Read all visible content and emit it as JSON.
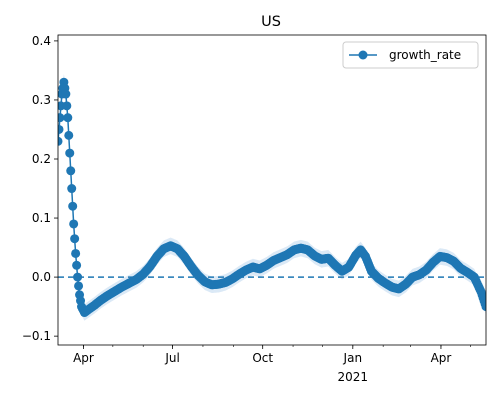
{
  "chart_data": {
    "type": "line",
    "title": "US",
    "xlabel": "",
    "ylabel": "",
    "x_start": "2020-03-06",
    "x_end": "2021-05-17",
    "xlim": [
      "2020-03-06",
      "2021-05-17"
    ],
    "ylim": [
      -0.115,
      0.41
    ],
    "x_ticks": [
      {
        "date": "2020-04-01",
        "label": "Apr"
      },
      {
        "date": "2020-07-01",
        "label": "Jul"
      },
      {
        "date": "2020-10-01",
        "label": "Oct"
      },
      {
        "date": "2021-01-01",
        "label": "Jan"
      },
      {
        "date": "2021-04-01",
        "label": "Apr"
      }
    ],
    "x_year_label": "2021",
    "y_ticks": [
      -0.1,
      0.0,
      0.1,
      0.2,
      0.3,
      0.4
    ],
    "y_tick_labels": [
      "−0.1",
      "0.0",
      "0.1",
      "0.2",
      "0.3",
      "0.4"
    ],
    "reference_line": {
      "y": 0.0,
      "style": "dashed"
    },
    "legend": {
      "position": "top-right",
      "entries": [
        "growth_rate"
      ]
    },
    "grid": false,
    "series": [
      {
        "name": "growth_rate",
        "color": "#1f77b4",
        "band_color": "#dbe9f6",
        "band_halfwidth": 0.014,
        "points": [
          [
            "2020-03-06",
            0.23
          ],
          [
            "2020-03-08",
            0.27
          ],
          [
            "2020-03-10",
            0.31
          ],
          [
            "2020-03-12",
            0.33
          ],
          [
            "2020-03-14",
            0.31
          ],
          [
            "2020-03-16",
            0.27
          ],
          [
            "2020-03-18",
            0.21
          ],
          [
            "2020-03-20",
            0.15
          ],
          [
            "2020-03-22",
            0.09
          ],
          [
            "2020-03-24",
            0.04
          ],
          [
            "2020-03-26",
            0.0
          ],
          [
            "2020-03-28",
            -0.03
          ],
          [
            "2020-03-30",
            -0.05
          ],
          [
            "2020-04-02",
            -0.06
          ],
          [
            "2020-04-06",
            -0.055
          ],
          [
            "2020-04-12",
            -0.048
          ],
          [
            "2020-04-18",
            -0.04
          ],
          [
            "2020-04-25",
            -0.032
          ],
          [
            "2020-05-02",
            -0.025
          ],
          [
            "2020-05-10",
            -0.017
          ],
          [
            "2020-05-18",
            -0.01
          ],
          [
            "2020-05-25",
            -0.004
          ],
          [
            "2020-06-01",
            0.005
          ],
          [
            "2020-06-08",
            0.018
          ],
          [
            "2020-06-15",
            0.035
          ],
          [
            "2020-06-22",
            0.048
          ],
          [
            "2020-06-29",
            0.053
          ],
          [
            "2020-07-06",
            0.048
          ],
          [
            "2020-07-13",
            0.035
          ],
          [
            "2020-07-20",
            0.018
          ],
          [
            "2020-07-27",
            0.003
          ],
          [
            "2020-08-03",
            -0.008
          ],
          [
            "2020-08-10",
            -0.013
          ],
          [
            "2020-08-17",
            -0.012
          ],
          [
            "2020-08-24",
            -0.009
          ],
          [
            "2020-08-31",
            -0.003
          ],
          [
            "2020-09-07",
            0.005
          ],
          [
            "2020-09-14",
            0.012
          ],
          [
            "2020-09-21",
            0.017
          ],
          [
            "2020-09-28",
            0.014
          ],
          [
            "2020-10-05",
            0.02
          ],
          [
            "2020-10-12",
            0.028
          ],
          [
            "2020-10-19",
            0.033
          ],
          [
            "2020-10-26",
            0.038
          ],
          [
            "2020-11-02",
            0.046
          ],
          [
            "2020-11-09",
            0.049
          ],
          [
            "2020-11-16",
            0.046
          ],
          [
            "2020-11-23",
            0.036
          ],
          [
            "2020-11-30",
            0.03
          ],
          [
            "2020-12-07",
            0.032
          ],
          [
            "2020-12-14",
            0.02
          ],
          [
            "2020-12-21",
            0.01
          ],
          [
            "2020-12-28",
            0.017
          ],
          [
            "2021-01-04",
            0.037
          ],
          [
            "2021-01-09",
            0.046
          ],
          [
            "2021-01-14",
            0.035
          ],
          [
            "2021-01-20",
            0.01
          ],
          [
            "2021-01-27",
            -0.002
          ],
          [
            "2021-02-03",
            -0.01
          ],
          [
            "2021-02-10",
            -0.017
          ],
          [
            "2021-02-17",
            -0.02
          ],
          [
            "2021-02-24",
            -0.012
          ],
          [
            "2021-03-03",
            0.0
          ],
          [
            "2021-03-10",
            0.004
          ],
          [
            "2021-03-17",
            0.012
          ],
          [
            "2021-03-24",
            0.025
          ],
          [
            "2021-03-31",
            0.035
          ],
          [
            "2021-04-07",
            0.033
          ],
          [
            "2021-04-14",
            0.027
          ],
          [
            "2021-04-21",
            0.015
          ],
          [
            "2021-04-28",
            0.008
          ],
          [
            "2021-05-05",
            0.0
          ],
          [
            "2021-05-12",
            -0.025
          ],
          [
            "2021-05-17",
            -0.05
          ]
        ]
      }
    ]
  }
}
